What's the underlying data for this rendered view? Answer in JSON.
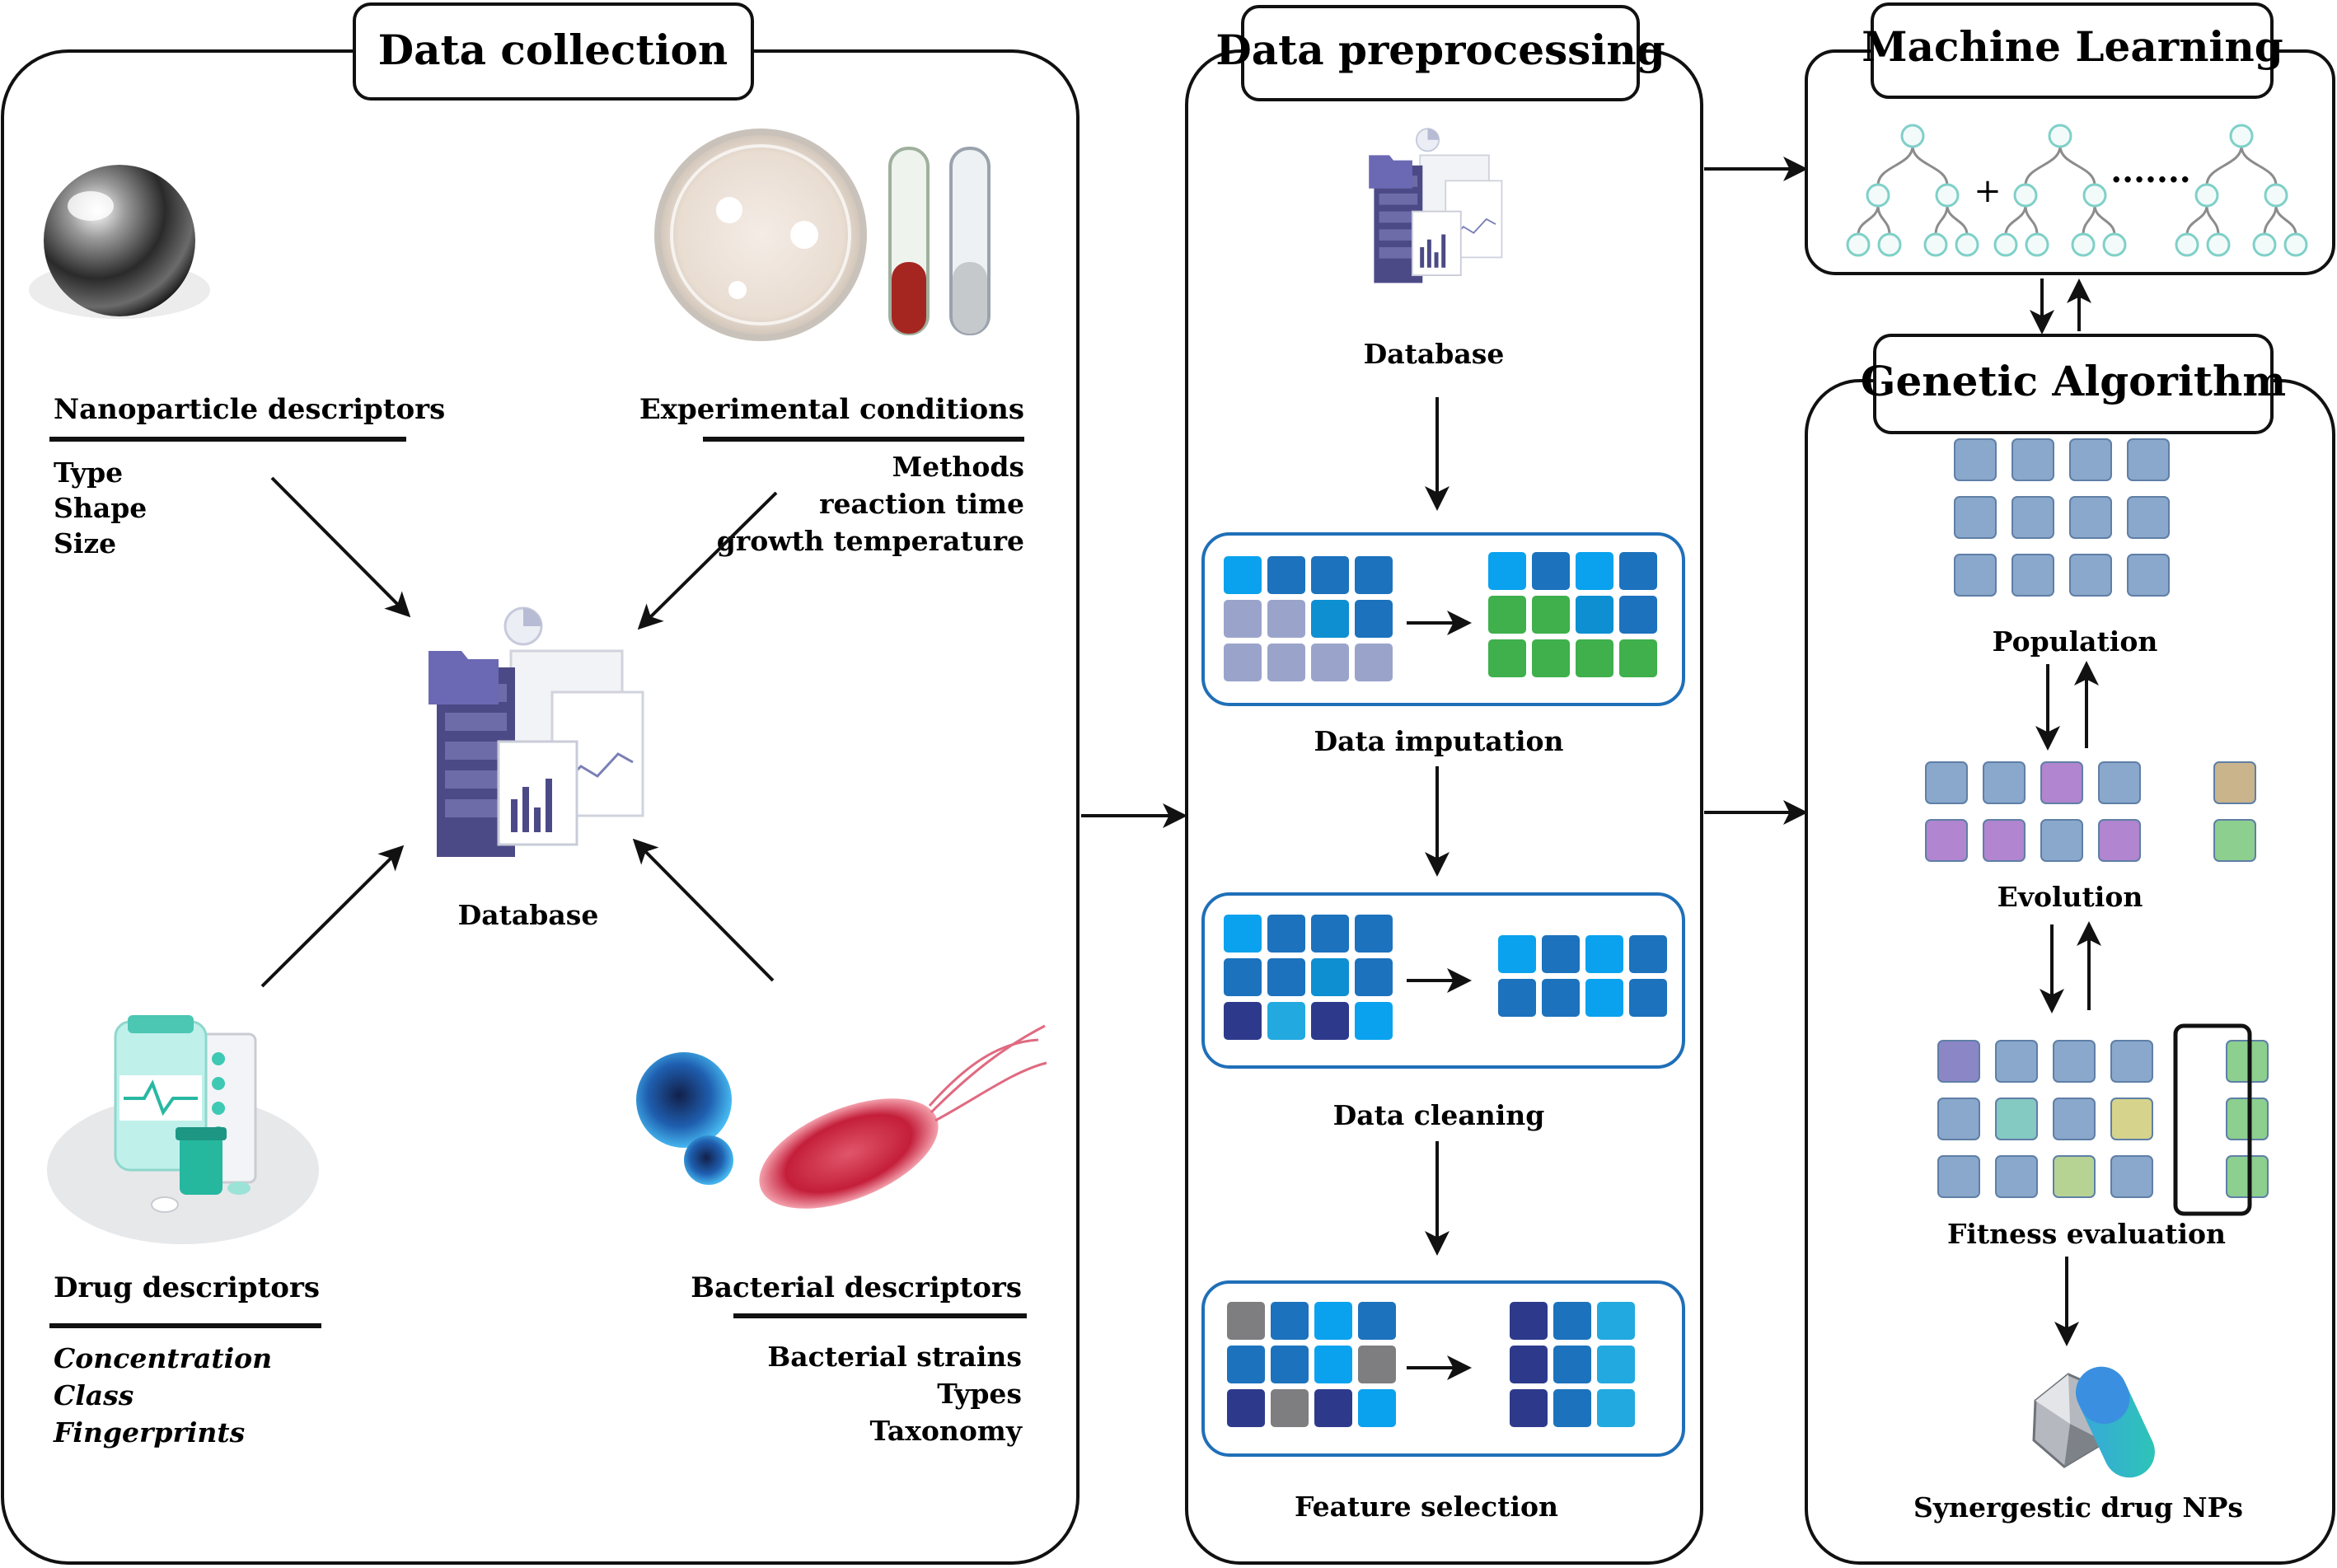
{
  "panels": {
    "collection": {
      "title": "Data collection",
      "nano": {
        "heading": "Nanoparticle descriptors",
        "items": [
          "Type",
          "Shape",
          "Size"
        ]
      },
      "exp": {
        "heading": "Experimental conditions",
        "items": [
          "Methods",
          "reaction time",
          "growth temperature"
        ]
      },
      "drug": {
        "heading": "Drug descriptors",
        "items": [
          "Concentration",
          "Class",
          "Fingerprints"
        ]
      },
      "bact": {
        "heading": "Bacterial descriptors",
        "items": [
          "Bacterial strains",
          "Types",
          "Taxonomy"
        ]
      },
      "database_label": "Database"
    },
    "preprocessing": {
      "title": "Data preprocessing",
      "database_label": "Database",
      "steps": [
        "Data imputation",
        "Data cleaning",
        "Feature selection"
      ]
    },
    "ml": {
      "title": "Machine Learning",
      "plus": "+",
      "dots": "·······"
    },
    "ga": {
      "title": "Genetic Algorithm",
      "stages": [
        "Population",
        "Evolution",
        "Fitness evaluation",
        "Synergestic drug NPs"
      ]
    }
  },
  "colors": {
    "sky": "#0aa2ee",
    "blue": "#1c72bd",
    "mid": "#0d8fd2",
    "lavender": "#9aa4cb",
    "green": "#3fb04c",
    "navy": "#2d3a8c",
    "gray": "#7e7e80",
    "light": "#22a9e0",
    "ga_blue": "#8aa8cb",
    "ga_purple": "#b185cf",
    "ga_green": "#8ccf8f",
    "ga_tan": "#c9b48c",
    "ga_teal": "#84c9c2",
    "ga_yellow": "#d6d48c",
    "ga_lime": "#b7d394",
    "ga_violet": "#8b86c6"
  },
  "grids": {
    "imputation_left": [
      [
        "sky",
        "blue",
        "blue",
        "blue"
      ],
      [
        "lavender",
        "lavender",
        "mid",
        "blue"
      ],
      [
        "lavender",
        "lavender",
        "lavender",
        "lavender"
      ]
    ],
    "imputation_right": [
      [
        "sky",
        "blue",
        "sky",
        "blue"
      ],
      [
        "green",
        "green",
        "mid",
        "blue"
      ],
      [
        "green",
        "green",
        "green",
        "green"
      ]
    ],
    "cleaning_left": [
      [
        "sky",
        "blue",
        "blue",
        "blue"
      ],
      [
        "blue",
        "blue",
        "mid",
        "blue"
      ],
      [
        "navy",
        "light",
        "navy",
        "sky"
      ]
    ],
    "cleaning_right": [
      [
        "sky",
        "blue",
        "sky",
        "blue"
      ],
      [
        "blue",
        "blue",
        "sky",
        "blue"
      ]
    ],
    "feature_left": [
      [
        "gray",
        "blue",
        "sky",
        "blue"
      ],
      [
        "blue",
        "blue",
        "sky",
        "gray"
      ],
      [
        "navy",
        "gray",
        "navy",
        "sky"
      ]
    ],
    "feature_right": [
      [
        "navy",
        "blue",
        "light"
      ],
      [
        "navy",
        "blue",
        "light"
      ],
      [
        "navy",
        "blue",
        "light"
      ]
    ],
    "population": [
      [
        "ga_blue",
        "ga_blue",
        "ga_blue",
        "ga_blue"
      ],
      [
        "ga_blue",
        "ga_blue",
        "ga_blue",
        "ga_blue"
      ],
      [
        "ga_blue",
        "ga_blue",
        "ga_blue",
        "ga_blue"
      ]
    ],
    "evolution": [
      [
        "ga_blue",
        "ga_blue",
        "ga_purple",
        "ga_blue",
        null,
        "ga_tan"
      ],
      [
        "ga_purple",
        "ga_purple",
        "ga_blue",
        "ga_purple",
        null,
        "ga_green"
      ]
    ],
    "fitness": [
      [
        "ga_violet",
        "ga_blue",
        "ga_blue",
        "ga_blue",
        null,
        "ga_green"
      ],
      [
        "ga_blue",
        "ga_teal",
        "ga_blue",
        "ga_yellow",
        null,
        "ga_green"
      ],
      [
        "ga_blue",
        "ga_blue",
        "ga_lime",
        "ga_blue",
        null,
        "ga_green"
      ]
    ]
  }
}
